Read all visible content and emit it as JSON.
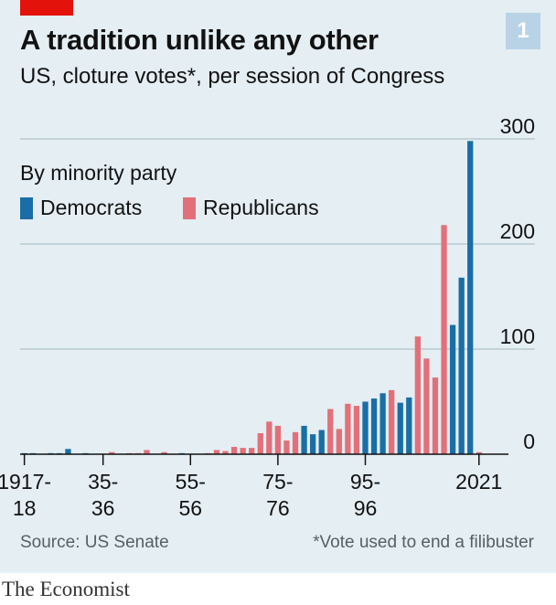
{
  "header": {
    "title": "A tradition unlike any other",
    "subtitle": "US, cloture votes*, per session of Congress",
    "chart_number": "1"
  },
  "legend": {
    "title": "By minority party",
    "items": [
      {
        "label": "Democrats",
        "color": "#1a6ea6"
      },
      {
        "label": "Republicans",
        "color": "#e2707a"
      }
    ]
  },
  "footer": {
    "source": "Source: US Senate",
    "footnote": "*Vote used to end a filibuster",
    "brand": "The Economist"
  },
  "colors": {
    "background": "#e4eef3",
    "gridline": "#b9c9d2",
    "baseline": "#121212",
    "democrats": "#1a6ea6",
    "republicans": "#e2707a",
    "brand_red": "#e3120b"
  },
  "chart_data": {
    "type": "bar",
    "title": "A tradition unlike any other",
    "subtitle": "US, cloture votes*, per session of Congress",
    "xlabel": "",
    "ylabel": "",
    "ylim": [
      0,
      300
    ],
    "yticks": [
      0,
      100,
      200,
      300
    ],
    "ytick_labels": [
      "0",
      "100",
      "200",
      "300"
    ],
    "y_axis_side": "right",
    "grid": true,
    "legend_position": "top-left",
    "x_tick_labels": [
      {
        "session": "1917-18",
        "lines": [
          "1917-",
          "18"
        ]
      },
      {
        "session": "1935-36",
        "lines": [
          "35-",
          "36"
        ]
      },
      {
        "session": "1955-56",
        "lines": [
          "55-",
          "56"
        ]
      },
      {
        "session": "1975-76",
        "lines": [
          "75-",
          "76"
        ]
      },
      {
        "session": "1995-96",
        "lines": [
          "95-",
          "96"
        ]
      },
      {
        "session": "2021-22",
        "lines": [
          "2021"
        ]
      }
    ],
    "series": [
      {
        "name": "Democrats",
        "color": "#1a6ea6"
      },
      {
        "name": "Republicans",
        "color": "#e2707a"
      }
    ],
    "bars": [
      {
        "session": "1917-18",
        "party": "Democrats",
        "value": 1
      },
      {
        "session": "1919-20",
        "party": "Democrats",
        "value": 1
      },
      {
        "session": "1921-22",
        "party": "Democrats",
        "value": 0
      },
      {
        "session": "1923-24",
        "party": "Democrats",
        "value": 1
      },
      {
        "session": "1925-26",
        "party": "Democrats",
        "value": 1
      },
      {
        "session": "1927-28",
        "party": "Democrats",
        "value": 5
      },
      {
        "session": "1929-30",
        "party": "Democrats",
        "value": 0
      },
      {
        "session": "1931-32",
        "party": "Democrats",
        "value": 1
      },
      {
        "session": "1933-34",
        "party": "Republicans",
        "value": 0
      },
      {
        "session": "1935-36",
        "party": "Republicans",
        "value": 0
      },
      {
        "session": "1937-38",
        "party": "Republicans",
        "value": 2
      },
      {
        "session": "1939-40",
        "party": "Republicans",
        "value": 0
      },
      {
        "session": "1941-42",
        "party": "Republicans",
        "value": 1
      },
      {
        "session": "1943-44",
        "party": "Republicans",
        "value": 1
      },
      {
        "session": "1945-46",
        "party": "Republicans",
        "value": 4
      },
      {
        "session": "1947-48",
        "party": "Democrats",
        "value": 0
      },
      {
        "session": "1949-50",
        "party": "Republicans",
        "value": 2
      },
      {
        "session": "1951-52",
        "party": "Republicans",
        "value": 0
      },
      {
        "session": "1953-54",
        "party": "Democrats",
        "value": 1
      },
      {
        "session": "1955-56",
        "party": "Republicans",
        "value": 0
      },
      {
        "session": "1957-58",
        "party": "Republicans",
        "value": 0
      },
      {
        "session": "1959-60",
        "party": "Republicans",
        "value": 1
      },
      {
        "session": "1961-62",
        "party": "Republicans",
        "value": 4
      },
      {
        "session": "1963-64",
        "party": "Republicans",
        "value": 3
      },
      {
        "session": "1965-66",
        "party": "Republicans",
        "value": 7
      },
      {
        "session": "1967-68",
        "party": "Republicans",
        "value": 6
      },
      {
        "session": "1969-70",
        "party": "Republicans",
        "value": 6
      },
      {
        "session": "1971-72",
        "party": "Republicans",
        "value": 20
      },
      {
        "session": "1973-74",
        "party": "Republicans",
        "value": 31
      },
      {
        "session": "1975-76",
        "party": "Republicans",
        "value": 27
      },
      {
        "session": "1977-78",
        "party": "Republicans",
        "value": 13
      },
      {
        "session": "1979-80",
        "party": "Republicans",
        "value": 21
      },
      {
        "session": "1981-82",
        "party": "Democrats",
        "value": 27
      },
      {
        "session": "1983-84",
        "party": "Democrats",
        "value": 19
      },
      {
        "session": "1985-86",
        "party": "Democrats",
        "value": 23
      },
      {
        "session": "1987-88",
        "party": "Republicans",
        "value": 43
      },
      {
        "session": "1989-90",
        "party": "Republicans",
        "value": 24
      },
      {
        "session": "1991-92",
        "party": "Republicans",
        "value": 48
      },
      {
        "session": "1993-94",
        "party": "Republicans",
        "value": 46
      },
      {
        "session": "1995-96",
        "party": "Democrats",
        "value": 50
      },
      {
        "session": "1997-98",
        "party": "Democrats",
        "value": 53
      },
      {
        "session": "1999-00",
        "party": "Democrats",
        "value": 58
      },
      {
        "session": "2001-02",
        "party": "Republicans",
        "value": 61
      },
      {
        "session": "2003-04",
        "party": "Democrats",
        "value": 49
      },
      {
        "session": "2005-06",
        "party": "Democrats",
        "value": 54
      },
      {
        "session": "2007-08",
        "party": "Republicans",
        "value": 112
      },
      {
        "session": "2009-10",
        "party": "Republicans",
        "value": 91
      },
      {
        "session": "2011-12",
        "party": "Republicans",
        "value": 73
      },
      {
        "session": "2013-14",
        "party": "Republicans",
        "value": 218
      },
      {
        "session": "2015-16",
        "party": "Democrats",
        "value": 123
      },
      {
        "session": "2017-18",
        "party": "Democrats",
        "value": 168
      },
      {
        "session": "2019-20",
        "party": "Democrats",
        "value": 298
      },
      {
        "session": "2021-22",
        "party": "Republicans",
        "value": 2
      }
    ]
  }
}
